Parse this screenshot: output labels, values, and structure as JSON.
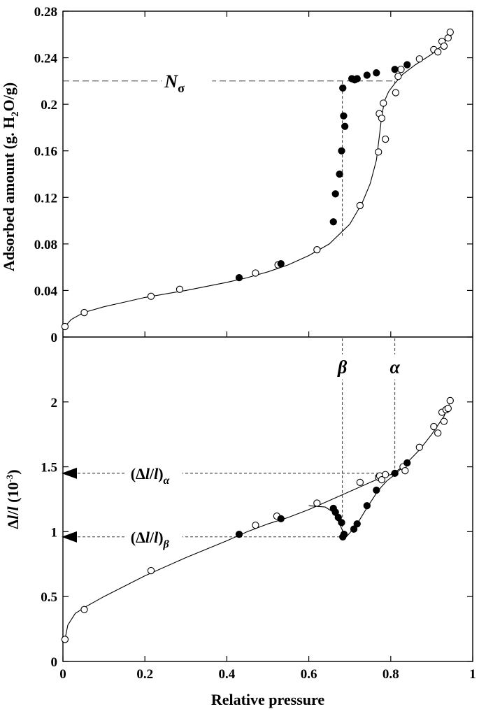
{
  "chart_data": {
    "type": "scatter",
    "x_axis": {
      "title": "Relative pressure",
      "range": [
        0,
        1
      ],
      "ticks": [
        0,
        0.2,
        0.4,
        0.6,
        0.8,
        1
      ],
      "tick_labels": [
        "0",
        "0.2",
        "0.4",
        "0.6",
        "0.8",
        "1"
      ]
    },
    "panels": [
      {
        "id": "adsorption",
        "ylabel_parts": [
          "Adsorbed amount (g. H",
          "2",
          "O/g)"
        ],
        "ylim": [
          0,
          0.28
        ],
        "yticks": [
          0,
          0.04,
          0.08,
          0.12,
          0.16,
          0.2,
          0.24,
          0.28
        ],
        "ytick_labels": [
          "0",
          "0.04",
          "0.08",
          "0.12",
          "0.16",
          "0.2",
          "0.24",
          "0.28"
        ],
        "series": [
          {
            "name": "adsorption (open circles)",
            "marker": "open",
            "points": [
              [
                0.005,
                0.009
              ],
              [
                0.052,
                0.021
              ],
              [
                0.215,
                0.035
              ],
              [
                0.285,
                0.041
              ],
              [
                0.47,
                0.055
              ],
              [
                0.525,
                0.062
              ],
              [
                0.62,
                0.075
              ],
              [
                0.725,
                0.113
              ],
              [
                0.77,
                0.159
              ],
              [
                0.772,
                0.192
              ],
              [
                0.778,
                0.188
              ],
              [
                0.782,
                0.201
              ],
              [
                0.787,
                0.17
              ],
              [
                0.812,
                0.21
              ],
              [
                0.818,
                0.224
              ],
              [
                0.825,
                0.23
              ],
              [
                0.87,
                0.239
              ],
              [
                0.905,
                0.247
              ],
              [
                0.915,
                0.245
              ],
              [
                0.925,
                0.254
              ],
              [
                0.93,
                0.25
              ],
              [
                0.94,
                0.257
              ],
              [
                0.945,
                0.262
              ]
            ]
          },
          {
            "name": "desorption (filled circles)",
            "marker": "filled",
            "points": [
              [
                0.43,
                0.051
              ],
              [
                0.532,
                0.063
              ],
              [
                0.66,
                0.099
              ],
              [
                0.665,
                0.123
              ],
              [
                0.675,
                0.14
              ],
              [
                0.68,
                0.16
              ],
              [
                0.683,
                0.214
              ],
              [
                0.685,
                0.19
              ],
              [
                0.688,
                0.181
              ],
              [
                0.705,
                0.222
              ],
              [
                0.712,
                0.221
              ],
              [
                0.718,
                0.222
              ],
              [
                0.742,
                0.225
              ],
              [
                0.765,
                0.227
              ],
              [
                0.81,
                0.23
              ],
              [
                0.84,
                0.234
              ]
            ]
          }
        ],
        "curve": [
          [
            0.005,
            0.009
          ],
          [
            0.02,
            0.015
          ],
          [
            0.05,
            0.021
          ],
          [
            0.1,
            0.026
          ],
          [
            0.15,
            0.03
          ],
          [
            0.2,
            0.034
          ],
          [
            0.3,
            0.04
          ],
          [
            0.4,
            0.047
          ],
          [
            0.45,
            0.051
          ],
          [
            0.5,
            0.056
          ],
          [
            0.55,
            0.062
          ],
          [
            0.6,
            0.07
          ],
          [
            0.65,
            0.08
          ],
          [
            0.7,
            0.097
          ],
          [
            0.73,
            0.115
          ],
          [
            0.75,
            0.132
          ],
          [
            0.765,
            0.152
          ],
          [
            0.772,
            0.172
          ],
          [
            0.778,
            0.19
          ],
          [
            0.785,
            0.203
          ],
          [
            0.795,
            0.211
          ],
          [
            0.81,
            0.218
          ],
          [
            0.83,
            0.226
          ],
          [
            0.86,
            0.234
          ],
          [
            0.9,
            0.243
          ],
          [
            0.93,
            0.252
          ],
          [
            0.945,
            0.262
          ]
        ],
        "reference_lines": [
          {
            "orientation": "horizontal",
            "y": 0.22,
            "x_from": 0,
            "x_to": 0.81
          },
          {
            "orientation": "vertical",
            "x": 0.682,
            "y_from": 0.087,
            "y_to": 0.22
          },
          {
            "orientation": "vertical",
            "x": 0.81,
            "y_from": 0.218,
            "y_to": 0.22
          }
        ],
        "annotations": [
          {
            "name": "n-sigma-label",
            "text": "N",
            "subscript": "σ",
            "x": 0.33,
            "y": 0.22
          }
        ]
      },
      {
        "id": "strain",
        "ylabel_parts": [
          "Δ",
          "l",
          "/",
          "l",
          " (10",
          "-3",
          ")"
        ],
        "ylim": [
          0,
          2.5
        ],
        "yticks": [
          0,
          0.5,
          1,
          1.5,
          2
        ],
        "ytick_labels": [
          "0",
          "0.5",
          "1",
          "1.5",
          "2"
        ],
        "series": [
          {
            "name": "adsorption (open circles)",
            "marker": "open",
            "points": [
              [
                0.005,
                0.17
              ],
              [
                0.052,
                0.4
              ],
              [
                0.215,
                0.7
              ],
              [
                0.47,
                1.05
              ],
              [
                0.522,
                1.12
              ],
              [
                0.62,
                1.22
              ],
              [
                0.725,
                1.38
              ],
              [
                0.77,
                1.42
              ],
              [
                0.773,
                1.43
              ],
              [
                0.778,
                1.4
              ],
              [
                0.787,
                1.44
              ],
              [
                0.83,
                1.5
              ],
              [
                0.835,
                1.47
              ],
              [
                0.87,
                1.65
              ],
              [
                0.905,
                1.81
              ],
              [
                0.915,
                1.76
              ],
              [
                0.925,
                1.92
              ],
              [
                0.93,
                1.85
              ],
              [
                0.935,
                1.94
              ],
              [
                0.94,
                1.95
              ],
              [
                0.945,
                2.01
              ]
            ]
          },
          {
            "name": "desorption (filled circles)",
            "marker": "filled",
            "points": [
              [
                0.43,
                0.98
              ],
              [
                0.532,
                1.1
              ],
              [
                0.66,
                1.18
              ],
              [
                0.665,
                1.15
              ],
              [
                0.672,
                1.11
              ],
              [
                0.68,
                1.07
              ],
              [
                0.683,
                0.96
              ],
              [
                0.686,
                0.98
              ],
              [
                0.71,
                1.02
              ],
              [
                0.718,
                1.06
              ],
              [
                0.742,
                1.2
              ],
              [
                0.765,
                1.32
              ],
              [
                0.81,
                1.45
              ],
              [
                0.84,
                1.53
              ]
            ]
          }
        ],
        "curve": [
          [
            0.005,
            0.17
          ],
          [
            0.012,
            0.28
          ],
          [
            0.03,
            0.37
          ],
          [
            0.06,
            0.43
          ],
          [
            0.1,
            0.5
          ],
          [
            0.15,
            0.58
          ],
          [
            0.2,
            0.66
          ],
          [
            0.3,
            0.8
          ],
          [
            0.4,
            0.93
          ],
          [
            0.45,
            1.0
          ],
          [
            0.5,
            1.06
          ],
          [
            0.55,
            1.11
          ],
          [
            0.6,
            1.17
          ],
          [
            0.65,
            1.24
          ],
          [
            0.7,
            1.31
          ],
          [
            0.75,
            1.38
          ],
          [
            0.78,
            1.42
          ],
          [
            0.8,
            1.44
          ],
          [
            0.83,
            1.5
          ],
          [
            0.87,
            1.63
          ],
          [
            0.9,
            1.75
          ],
          [
            0.93,
            1.89
          ],
          [
            0.945,
            2.0
          ]
        ],
        "curve_branch": [
          [
            0.6,
            1.2
          ],
          [
            0.64,
            1.19
          ],
          [
            0.66,
            1.15
          ],
          [
            0.675,
            1.06
          ],
          [
            0.69,
            0.955
          ],
          [
            0.7,
            0.99
          ],
          [
            0.72,
            1.07
          ],
          [
            0.745,
            1.2
          ],
          [
            0.77,
            1.32
          ],
          [
            0.79,
            1.39
          ],
          [
            0.81,
            1.44
          ],
          [
            0.83,
            1.5
          ]
        ],
        "reference_lines": [
          {
            "orientation": "horizontal",
            "y": 1.45,
            "x_from": 0,
            "x_to": 0.81
          },
          {
            "orientation": "horizontal",
            "y": 0.96,
            "x_from": 0,
            "x_to": 0.69
          },
          {
            "orientation": "vertical",
            "x": 0.682,
            "y_from": 0.96,
            "y_to": 2.5
          },
          {
            "orientation": "vertical",
            "x": 0.81,
            "y_from": 1.45,
            "y_to": 2.5
          }
        ],
        "arrows": [
          {
            "name": "alpha-level-arrow",
            "y": 1.45
          },
          {
            "name": "beta-level-arrow",
            "y": 0.96
          }
        ],
        "annotations": [
          {
            "name": "beta-label",
            "text": "β",
            "x": 0.682,
            "y": 2.27
          },
          {
            "name": "alpha-label",
            "text": "α",
            "x": 0.81,
            "y": 2.27
          },
          {
            "name": "delta-l-alpha-label",
            "open": "(Δ",
            "var1": "l",
            "slash": "/",
            "var2": "l",
            "close": ")",
            "subscript": "α",
            "x": 0.165,
            "y": 1.45
          },
          {
            "name": "delta-l-beta-label",
            "open": "(Δ",
            "var1": "l",
            "slash": "/",
            "var2": "l",
            "close": ")",
            "subscript": "β",
            "x": 0.165,
            "y": 0.96
          }
        ]
      }
    ]
  }
}
